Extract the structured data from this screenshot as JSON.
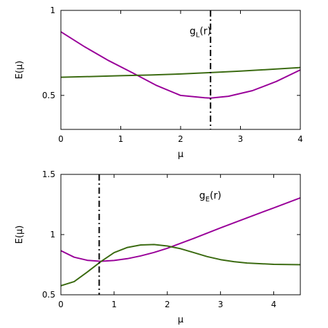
{
  "chart_data": [
    {
      "type": "line",
      "xlabel": "μ",
      "ylabel": "E(μ)",
      "xlim": [
        0,
        4
      ],
      "ylim": [
        0.3,
        1.0
      ],
      "xticks": [
        0,
        1,
        2,
        3,
        4
      ],
      "xtick_labels": [
        "0",
        "1",
        "2",
        "3",
        "4"
      ],
      "yticks": [
        0.5,
        1.0
      ],
      "ytick_labels": [
        "0.5",
        "1"
      ],
      "grid": false,
      "annotation": {
        "main": "g",
        "sub": "L",
        "suffix": "(r)",
        "x": 2.15,
        "y": 0.86
      },
      "vline": {
        "x": 2.5,
        "style": "dash-dot",
        "color": "#000000"
      },
      "series": [
        {
          "color": "#990099",
          "x": [
            0,
            0.4,
            0.8,
            1.2,
            1.6,
            2.0,
            2.4,
            2.5,
            2.8,
            3.2,
            3.6,
            4.0
          ],
          "y": [
            0.874,
            0.785,
            0.704,
            0.632,
            0.558,
            0.5,
            0.486,
            0.484,
            0.495,
            0.528,
            0.582,
            0.65
          ]
        },
        {
          "color": "#3a6a10",
          "x": [
            0,
            0.5,
            1.0,
            1.5,
            2.0,
            2.5,
            3.0,
            3.5,
            4.0
          ],
          "y": [
            0.607,
            0.611,
            0.616,
            0.62,
            0.626,
            0.634,
            0.643,
            0.653,
            0.664
          ]
        }
      ]
    },
    {
      "type": "line",
      "xlabel": "μ",
      "ylabel": "E(μ)",
      "xlim": [
        0,
        4.5
      ],
      "ylim": [
        0.5,
        1.5
      ],
      "xticks": [
        0,
        1,
        2,
        3,
        4
      ],
      "xtick_labels": [
        "0",
        "1",
        "2",
        "3",
        "4"
      ],
      "yticks": [
        0.5,
        1.0,
        1.5
      ],
      "ytick_labels": [
        "0.5",
        "1",
        "1.5"
      ],
      "grid": false,
      "annotation": {
        "main": "g",
        "sub": "E",
        "suffix": "(r)",
        "x": 2.6,
        "y": 1.3
      },
      "vline": {
        "x": 0.72,
        "style": "dash-dot",
        "color": "#000000"
      },
      "series": [
        {
          "color": "#990099",
          "x": [
            0,
            0.25,
            0.5,
            0.75,
            1.0,
            1.25,
            1.5,
            1.75,
            2.0,
            2.5,
            3.0,
            3.5,
            4.0,
            4.5
          ],
          "y": [
            0.866,
            0.812,
            0.786,
            0.778,
            0.785,
            0.8,
            0.823,
            0.852,
            0.886,
            0.969,
            1.056,
            1.139,
            1.222,
            1.305
          ]
        },
        {
          "color": "#3a6a10",
          "x": [
            0,
            0.25,
            0.5,
            0.75,
            1.0,
            1.25,
            1.5,
            1.75,
            2.0,
            2.25,
            2.5,
            2.75,
            3.0,
            3.25,
            3.5,
            4.0,
            4.5
          ],
          "y": [
            0.575,
            0.61,
            0.69,
            0.775,
            0.85,
            0.893,
            0.914,
            0.917,
            0.905,
            0.883,
            0.85,
            0.817,
            0.792,
            0.775,
            0.764,
            0.753,
            0.75
          ]
        }
      ]
    }
  ]
}
